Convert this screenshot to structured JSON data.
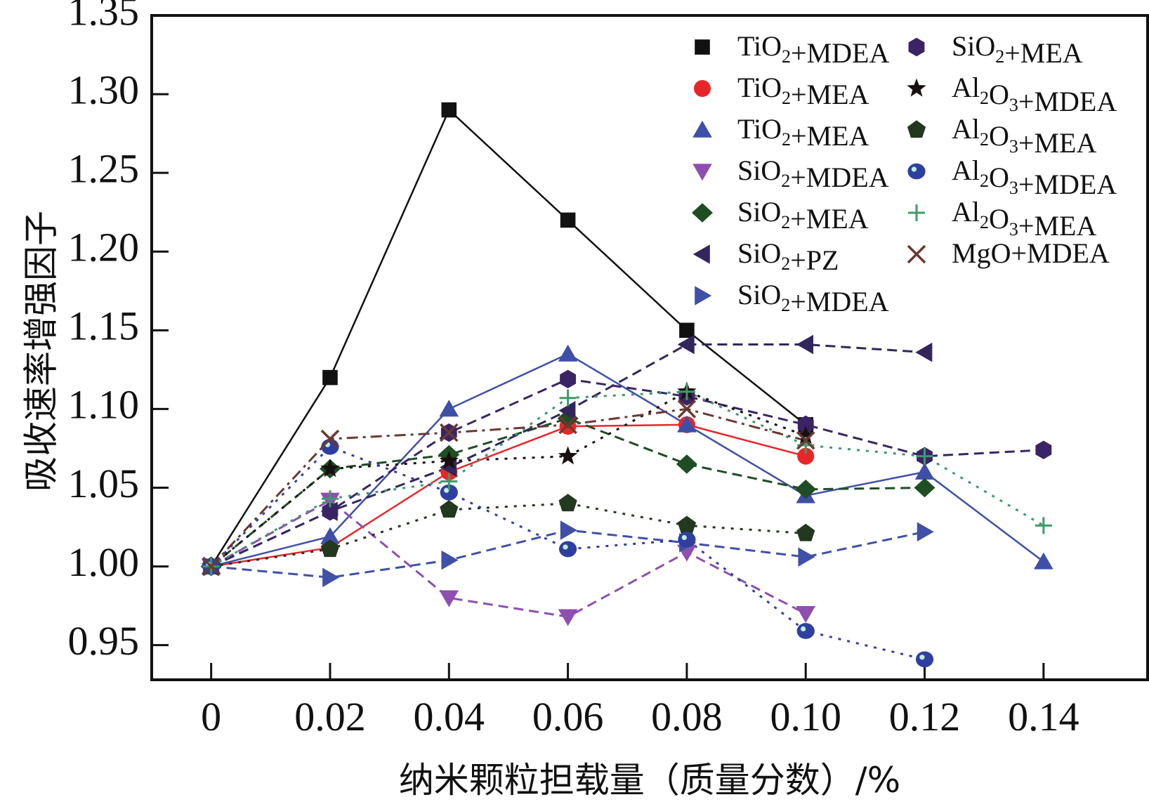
{
  "chart_data": {
    "type": "line",
    "title": "",
    "xlabel": "纳米颗粒担载量（质量分数）/%",
    "ylabel": "吸收速率增强因子",
    "xlim": [
      -0.01,
      0.1575
    ],
    "ylim": [
      0.928,
      1.35
    ],
    "x_ticks": [
      0,
      0.02,
      0.04,
      0.06,
      0.08,
      0.1,
      0.12,
      0.14
    ],
    "x_tick_labels": [
      "0",
      "0.02",
      "0.04",
      "0.06",
      "0.08",
      "0.10",
      "0.12",
      "0.14"
    ],
    "y_ticks": [
      0.95,
      1.0,
      1.05,
      1.1,
      1.15,
      1.2,
      1.25,
      1.3,
      1.35
    ],
    "y_tick_labels": [
      "0.95",
      "1.00",
      "1.05",
      "1.10",
      "1.15",
      "1.20",
      "1.25",
      "1.30",
      "1.35"
    ],
    "grid": false,
    "legend_position": "top-right",
    "series": [
      {
        "name": "TiO2+MDEA",
        "base": "TiO",
        "sub1": "2",
        "mid": "",
        "sub2": "",
        "tail": "+MDEA",
        "marker": "square",
        "color": "#111111",
        "line": "solid",
        "x": [
          0,
          0.02,
          0.04,
          0.06,
          0.08,
          0.1
        ],
        "y": [
          1.0,
          1.12,
          1.29,
          1.22,
          1.15,
          1.09
        ]
      },
      {
        "name": "TiO2+MEA",
        "base": "TiO",
        "sub1": "2",
        "mid": "",
        "sub2": "",
        "tail": "+MEA",
        "marker": "circle",
        "color": "#e8262a",
        "line": "solid",
        "x": [
          0,
          0.02,
          0.04,
          0.06,
          0.08,
          0.1
        ],
        "y": [
          1.0,
          1.012,
          1.06,
          1.089,
          1.09,
          1.07
        ]
      },
      {
        "name": "TiO2+MEA",
        "base": "TiO",
        "sub1": "2",
        "mid": "",
        "sub2": "",
        "tail": "+MEA",
        "marker": "triangle-up",
        "color": "#3f4fa8",
        "line": "solid",
        "x": [
          0,
          0.02,
          0.04,
          0.06,
          0.08,
          0.1,
          0.12,
          0.14
        ],
        "y": [
          1.0,
          1.019,
          1.1,
          1.135,
          1.09,
          1.045,
          1.06,
          1.003
        ]
      },
      {
        "name": "SiO2+MDEA",
        "base": "SiO",
        "sub1": "2",
        "mid": "",
        "sub2": "",
        "tail": "+MDEA",
        "marker": "triangle-down",
        "color": "#8e4fb0",
        "line": "dash",
        "x": [
          0,
          0.02,
          0.04,
          0.06,
          0.08,
          0.1
        ],
        "y": [
          1.0,
          1.042,
          0.98,
          0.968,
          1.009,
          0.97
        ]
      },
      {
        "name": "SiO2+MEA",
        "base": "SiO",
        "sub1": "2",
        "mid": "",
        "sub2": "",
        "tail": "+MEA",
        "marker": "diamond",
        "color": "#1f4d24",
        "line": "dash",
        "x": [
          0,
          0.02,
          0.04,
          0.06,
          0.08,
          0.1,
          0.12
        ],
        "y": [
          1.0,
          1.062,
          1.071,
          1.094,
          1.065,
          1.049,
          1.05
        ]
      },
      {
        "name": "SiO2+PZ",
        "base": "SiO",
        "sub1": "2",
        "mid": "",
        "sub2": "",
        "tail": "+PZ",
        "marker": "triangle-left",
        "color": "#33265c",
        "line": "dash",
        "x": [
          0,
          0.02,
          0.04,
          0.06,
          0.08,
          0.1,
          0.12
        ],
        "y": [
          1.0,
          1.035,
          1.063,
          1.099,
          1.141,
          1.141,
          1.136
        ]
      },
      {
        "name": "SiO2+MDEA",
        "base": "SiO",
        "sub1": "2",
        "mid": "",
        "sub2": "",
        "tail": "+MDEA",
        "marker": "triangle-right",
        "color": "#4050a8",
        "line": "dash",
        "x": [
          0,
          0.02,
          0.04,
          0.06,
          0.08,
          0.1,
          0.12
        ],
        "y": [
          1.0,
          0.993,
          1.004,
          1.023,
          1.015,
          1.006,
          1.022
        ]
      },
      {
        "name": "SiO2+MEA",
        "base": "SiO",
        "sub1": "2",
        "mid": "",
        "sub2": "",
        "tail": "+MEA",
        "marker": "hexagon",
        "color": "#3a2466",
        "line": "dash",
        "x": [
          0,
          0.02,
          0.04,
          0.06,
          0.08,
          0.1,
          0.12,
          0.14
        ],
        "y": [
          1.0,
          1.035,
          1.085,
          1.119,
          1.108,
          1.09,
          1.07,
          1.074
        ]
      },
      {
        "name": "Al2O3+MDEA",
        "base": "Al",
        "sub1": "2",
        "mid": "O",
        "sub2": "3",
        "tail": "+MDEA",
        "marker": "star",
        "color": "#1a0f10",
        "line": "dot",
        "x": [
          0,
          0.02,
          0.04,
          0.06,
          0.08,
          0.1
        ],
        "y": [
          1.0,
          1.062,
          1.067,
          1.07,
          1.111,
          1.083
        ]
      },
      {
        "name": "Al2O3+MEA",
        "base": "Al",
        "sub1": "2",
        "mid": "O",
        "sub2": "3",
        "tail": "+MEA",
        "marker": "pentagon",
        "color": "#22381f",
        "line": "dot",
        "x": [
          0,
          0.02,
          0.04,
          0.06,
          0.08,
          0.1
        ],
        "y": [
          1.0,
          1.011,
          1.036,
          1.04,
          1.026,
          1.021
        ]
      },
      {
        "name": "Al2O3+MDEA",
        "base": "Al",
        "sub1": "2",
        "mid": "O",
        "sub2": "3",
        "tail": "+MDEA",
        "marker": "sphere",
        "color": "#2f3fa0",
        "line": "dot",
        "x": [
          0,
          0.02,
          0.04,
          0.06,
          0.08,
          0.1,
          0.12
        ],
        "y": [
          1.0,
          1.076,
          1.047,
          1.011,
          1.017,
          0.959,
          0.941
        ]
      },
      {
        "name": "Al2O3+MEA",
        "base": "Al",
        "sub1": "2",
        "mid": "O",
        "sub2": "3",
        "tail": "+MEA",
        "marker": "plus",
        "color": "#3f9a6a",
        "line": "dot",
        "x": [
          0,
          0.02,
          0.04,
          0.06,
          0.08,
          0.1,
          0.12,
          0.14
        ],
        "y": [
          1.0,
          1.043,
          1.054,
          1.107,
          1.111,
          1.077,
          1.07,
          1.026
        ]
      },
      {
        "name": "MgO+MDEA",
        "base": "MgO+MDEA",
        "sub1": "",
        "mid": "",
        "sub2": "",
        "tail": "",
        "marker": "x",
        "color": "#6a3a32",
        "line": "dashdot",
        "x": [
          0,
          0.02,
          0.04,
          0.06,
          0.08,
          0.1
        ],
        "y": [
          1.0,
          1.081,
          1.085,
          1.09,
          1.1,
          1.08
        ]
      }
    ]
  }
}
